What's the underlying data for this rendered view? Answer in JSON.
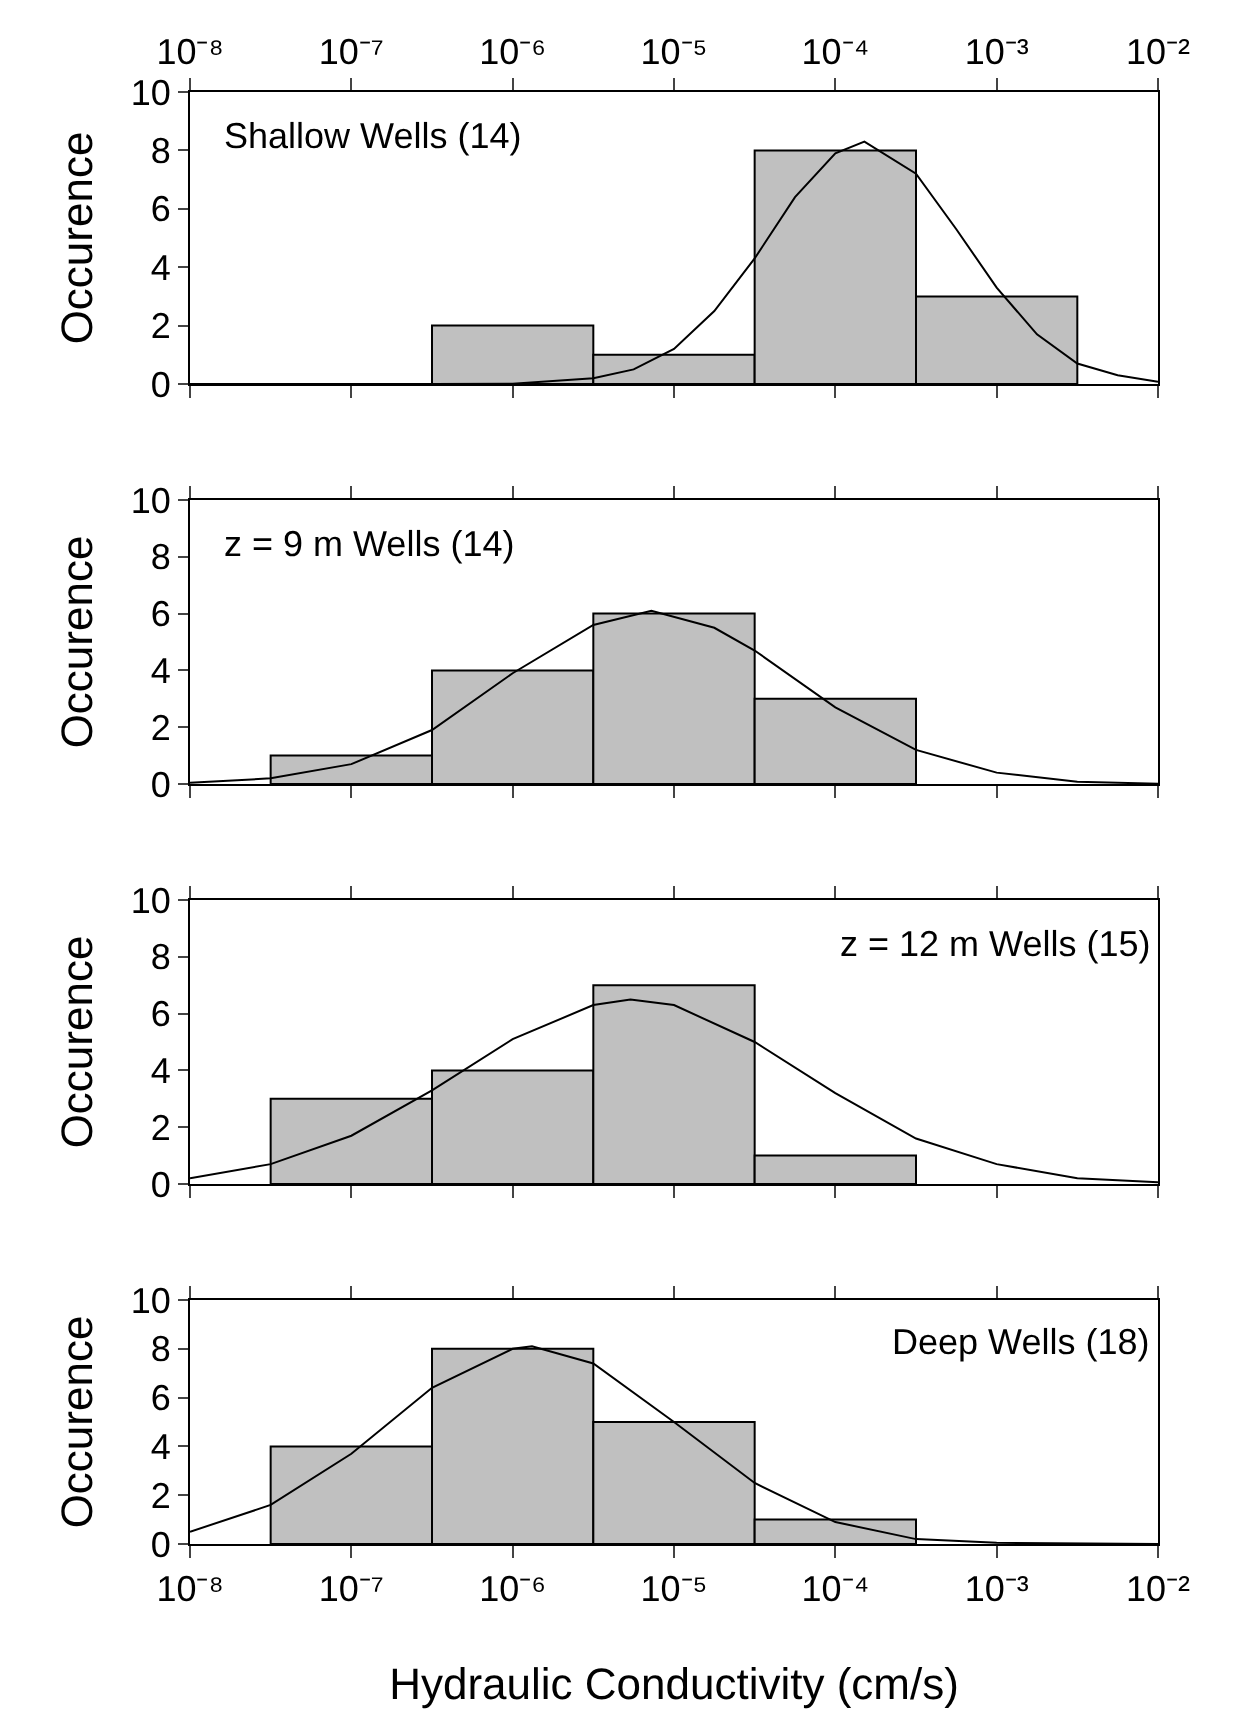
{
  "chart_data": [
    {
      "type": "histogram",
      "annotations": [
        "Shallow Wells (14)"
      ],
      "ylabel": "Occurence",
      "bins": [
        3.162e-07,
        3.162e-06,
        3.162e-05,
        0.0003162,
        0.003162
      ],
      "values": [
        2,
        1,
        8,
        3
      ],
      "color": "#c0c0c0",
      "series": [
        {
          "type": "line",
          "color": "#000000",
          "x": [
            1e-08,
            3.162e-07,
            1e-06,
            3.162e-06,
            5.623e-06,
            1e-05,
            1.778e-05,
            3.162e-05,
            5.623e-05,
            0.0001,
            0.0001514,
            0.0003162,
            0.0005623,
            0.001,
            0.001778,
            0.003162,
            0.005623,
            0.01
          ],
          "values": [
            0,
            0,
            0.01,
            0.2,
            0.5,
            1.2,
            2.5,
            4.3,
            6.4,
            7.9,
            8.3,
            7.2,
            5.3,
            3.3,
            1.7,
            0.7,
            0.3,
            0.08
          ]
        }
      ],
      "xlim": [
        1e-08,
        0.01
      ],
      "xticks": [
        {
          "value": 1e-08,
          "label": "10⁻⁸"
        },
        {
          "value": 1e-07,
          "label": "10⁻⁷"
        },
        {
          "value": 1e-06,
          "label": "10⁻⁶"
        },
        {
          "value": 1e-05,
          "label": "10⁻⁵"
        },
        {
          "value": 0.0001,
          "label": "10⁻⁴"
        },
        {
          "value": 0.001,
          "label": "10⁻³"
        },
        {
          "value": 0.01,
          "label": "10⁻²"
        }
      ],
      "log": "x",
      "ylim": [
        0,
        10
      ],
      "yticks": [
        0,
        2,
        4,
        6,
        8,
        10
      ],
      "grid": false
    },
    {
      "type": "histogram",
      "annotations": [
        "z = 9 m Wells (14)"
      ],
      "ylabel": "Occurence",
      "bins": [
        3.162e-08,
        3.162e-07,
        3.162e-06,
        3.162e-05,
        0.0003162
      ],
      "values": [
        1,
        4,
        6,
        3
      ],
      "color": "#c0c0c0",
      "series": [
        {
          "type": "line",
          "color": "#000000",
          "x": [
            1e-08,
            3.162e-08,
            1e-07,
            3.162e-07,
            1e-06,
            3.162e-06,
            7.244e-06,
            1.778e-05,
            3.162e-05,
            0.0001,
            0.0003162,
            0.001,
            0.003162,
            0.01
          ],
          "values": [
            0.04,
            0.2,
            0.7,
            1.9,
            3.9,
            5.6,
            6.1,
            5.5,
            4.7,
            2.7,
            1.2,
            0.4,
            0.08,
            0.01
          ]
        }
      ],
      "xlim": [
        1e-08,
        0.01
      ],
      "xticks": [
        {
          "value": 1e-08,
          "label": null
        },
        {
          "value": 1e-07,
          "label": null
        },
        {
          "value": 1e-06,
          "label": null
        },
        {
          "value": 1e-05,
          "label": null
        },
        {
          "value": 0.0001,
          "label": null
        },
        {
          "value": 0.001,
          "label": null
        },
        {
          "value": 0.01,
          "label": null
        }
      ],
      "tick_labels": "y",
      "log": "x",
      "ylim": [
        0,
        10
      ],
      "yticks": [
        0,
        2,
        4,
        6,
        8,
        10
      ],
      "grid": false
    },
    {
      "type": "histogram",
      "annotations": [
        "z = 12 m Wells (15)"
      ],
      "ylabel": "Occurence",
      "bins": [
        3.162e-08,
        3.162e-07,
        3.162e-06,
        3.162e-05,
        0.0003162
      ],
      "values": [
        3,
        4,
        7,
        1
      ],
      "color": "#c0c0c0",
      "series": [
        {
          "type": "line",
          "color": "#000000",
          "x": [
            1e-08,
            3.162e-08,
            1e-07,
            3.162e-07,
            1e-06,
            3.162e-06,
            5.37e-06,
            1e-05,
            3.162e-05,
            0.0001,
            0.0003162,
            0.001,
            0.003162,
            0.01
          ],
          "values": [
            0.2,
            0.7,
            1.7,
            3.3,
            5.1,
            6.3,
            6.5,
            6.3,
            5.0,
            3.2,
            1.6,
            0.7,
            0.2,
            0.06
          ]
        }
      ],
      "xlim": [
        1e-08,
        0.01
      ],
      "xticks": [
        {
          "value": 1e-08,
          "label": null
        },
        {
          "value": 1e-07,
          "label": null
        },
        {
          "value": 1e-06,
          "label": null
        },
        {
          "value": 1e-05,
          "label": null
        },
        {
          "value": 0.0001,
          "label": null
        },
        {
          "value": 0.001,
          "label": null
        },
        {
          "value": 0.01,
          "label": null
        }
      ],
      "tick_labels": "y",
      "log": "x",
      "ylim": [
        0,
        10
      ],
      "yticks": [
        0,
        2,
        4,
        6,
        8,
        10
      ],
      "grid": false
    },
    {
      "type": "histogram",
      "annotations": [
        "Deep Wells (18)"
      ],
      "ylabel": "Occurence",
      "xlabel": "Hydraulic Conductivity (cm/s)",
      "bins": [
        3.162e-08,
        3.162e-07,
        3.162e-06,
        3.162e-05,
        0.0003162
      ],
      "values": [
        4,
        8,
        5,
        1
      ],
      "color": "#c0c0c0",
      "series": [
        {
          "type": "line",
          "color": "#000000",
          "x": [
            1e-08,
            3.162e-08,
            1e-07,
            3.162e-07,
            1e-06,
            1.318e-06,
            3.162e-06,
            1e-05,
            3.162e-05,
            0.0001,
            0.0003162,
            0.001,
            0.01
          ],
          "values": [
            0.5,
            1.6,
            3.7,
            6.4,
            8.0,
            8.1,
            7.4,
            5.0,
            2.5,
            0.9,
            0.2,
            0.05,
            0
          ]
        }
      ],
      "xlim": [
        1e-08,
        0.01
      ],
      "xticks": [
        {
          "value": 1e-08,
          "label": "10⁻⁸"
        },
        {
          "value": 1e-07,
          "label": "10⁻⁷"
        },
        {
          "value": 1e-06,
          "label": "10⁻⁶"
        },
        {
          "value": 1e-05,
          "label": "10⁻⁵"
        },
        {
          "value": 0.0001,
          "label": "10⁻⁴"
        },
        {
          "value": 0.001,
          "label": "10⁻³"
        },
        {
          "value": 0.01,
          "label": "10⁻²"
        }
      ],
      "log": "x",
      "ylim": [
        0,
        10
      ],
      "yticks": [
        0,
        2,
        4,
        6,
        8,
        10
      ],
      "grid": false
    }
  ]
}
